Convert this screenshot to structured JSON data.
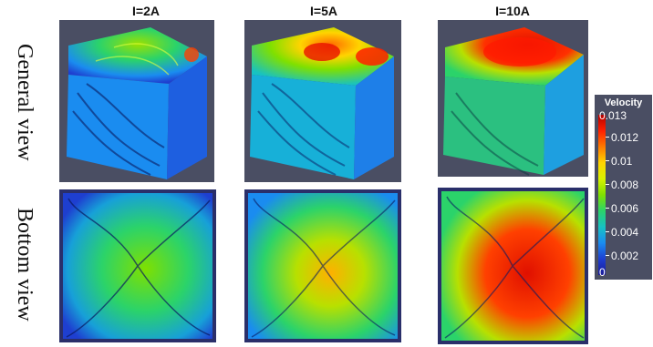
{
  "columns": [
    "I=2A",
    "I=5A",
    "I=10A"
  ],
  "rows": [
    "General view",
    "Bottom view"
  ],
  "legend": {
    "title": "Velocity",
    "ticks": [
      "0.013",
      "0.012",
      "0.01",
      "0.008",
      "0.006",
      "0.004",
      "0.002",
      "0"
    ]
  },
  "colors": {
    "background_panel": "#4a4e63",
    "low": "#1a1a9a",
    "mid": "#7fe000",
    "high": "#ff2000"
  }
}
